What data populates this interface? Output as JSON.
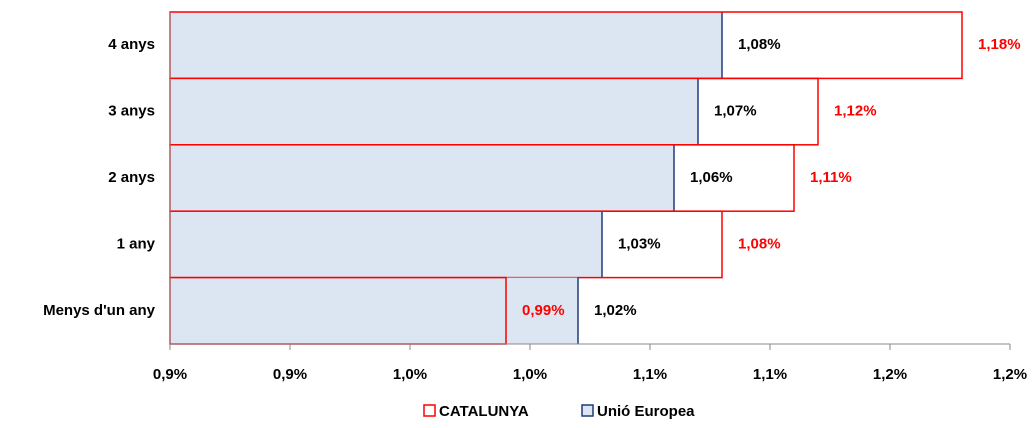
{
  "chart_data": {
    "type": "bar",
    "categories": [
      "4 anys",
      "3 anys",
      "2 anys",
      "1 any",
      "Menys d'un any"
    ],
    "series": [
      {
        "name": "CATALUNYA",
        "color": "#ff0000",
        "values": [
          1.18,
          1.12,
          1.11,
          1.08,
          0.99
        ],
        "value_labels": [
          "1,18%",
          "1,12%",
          "1,11%",
          "1,08%",
          "0,99%"
        ]
      },
      {
        "name": "Unió Europea",
        "color": "#1f3d7a",
        "fill": "#dce6f2",
        "values": [
          1.08,
          1.07,
          1.06,
          1.03,
          1.02
        ],
        "value_labels": [
          "1,08%",
          "1,07%",
          "1,06%",
          "1,03%",
          "1,02%"
        ]
      }
    ],
    "xlim": [
      0.85,
      1.2
    ],
    "xticks": [
      {
        "value": 0.85,
        "label": "0,9%"
      },
      {
        "value": 0.9,
        "label": "0,9%"
      },
      {
        "value": 0.95,
        "label": "1,0%"
      },
      {
        "value": 1.0,
        "label": "1,0%"
      },
      {
        "value": 1.05,
        "label": "1,1%"
      },
      {
        "value": 1.1,
        "label": "1,1%"
      },
      {
        "value": 1.15,
        "label": "1,2%"
      },
      {
        "value": 1.2,
        "label": "1,2%"
      }
    ],
    "legend": "bottom"
  }
}
